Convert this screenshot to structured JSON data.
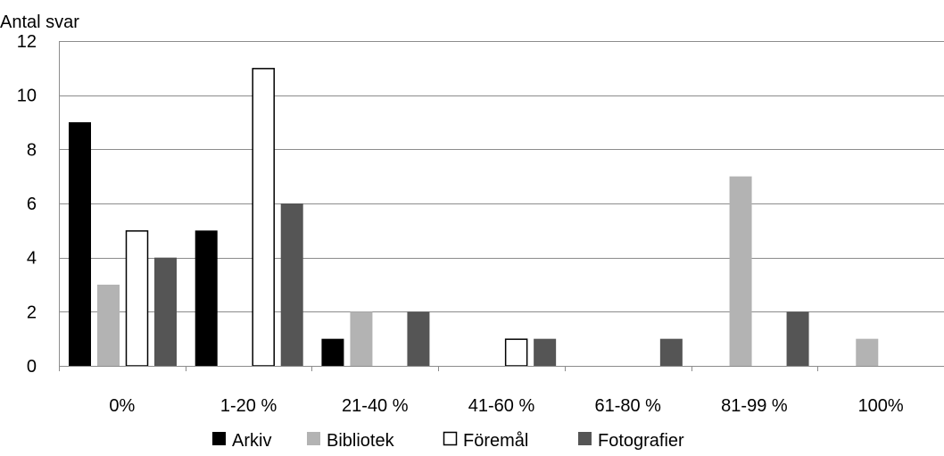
{
  "chart_data": {
    "type": "bar",
    "title": "",
    "ylabel": "Antal svar",
    "xlabel": "",
    "categories": [
      "0%",
      "1-20 %",
      "21-40 %",
      "41-60 %",
      "61-80 %",
      "81-99 %",
      "100%"
    ],
    "ylim": [
      0,
      12
    ],
    "yticks": [
      0,
      2,
      4,
      6,
      8,
      10,
      12
    ],
    "grid": true,
    "legend_position": "bottom",
    "series": [
      {
        "name": "Arkiv",
        "color": "#000000",
        "values": [
          9,
          5,
          1,
          0,
          0,
          0,
          0
        ]
      },
      {
        "name": "Bibliotek",
        "color": "#b3b3b3",
        "values": [
          3,
          0,
          2,
          0,
          0,
          7,
          1
        ]
      },
      {
        "name": "Föremål",
        "color": "#ffffff",
        "values": [
          5,
          11,
          0,
          1,
          0,
          0,
          0
        ]
      },
      {
        "name": "Fotografier",
        "color": "#555555",
        "values": [
          4,
          6,
          2,
          1,
          1,
          2,
          0
        ]
      }
    ]
  }
}
